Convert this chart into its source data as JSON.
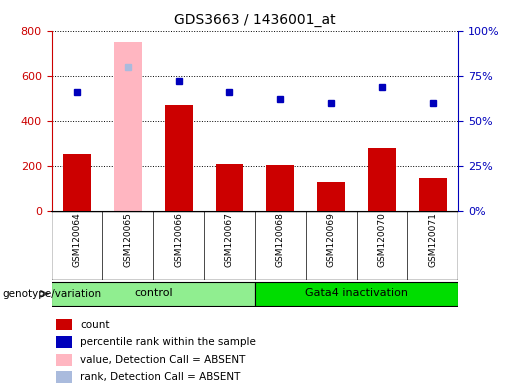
{
  "title": "GDS3663 / 1436001_at",
  "samples": [
    "GSM120064",
    "GSM120065",
    "GSM120066",
    "GSM120067",
    "GSM120068",
    "GSM120069",
    "GSM120070",
    "GSM120071"
  ],
  "counts": [
    255,
    null,
    470,
    210,
    205,
    130,
    280,
    145
  ],
  "percentile_ranks": [
    66,
    80,
    72,
    66,
    62,
    60,
    69,
    60
  ],
  "absent_value_idx": 1,
  "absent_value": 750,
  "absent_rank": 80,
  "groups": [
    {
      "label": "control",
      "start": 0,
      "end": 3,
      "color": "#90EE90"
    },
    {
      "label": "Gata4 inactivation",
      "start": 4,
      "end": 7,
      "color": "#00DD00"
    }
  ],
  "ylim_left": [
    0,
    800
  ],
  "ylim_right": [
    0,
    100
  ],
  "yticks_left": [
    0,
    200,
    400,
    600,
    800
  ],
  "ytick_labels_left": [
    "0",
    "200",
    "400",
    "600",
    "800"
  ],
  "yticks_right": [
    0,
    25,
    50,
    75,
    100
  ],
  "ytick_labels_right": [
    "0%",
    "25%",
    "50%",
    "75%",
    "100%"
  ],
  "bar_color": "#CC0000",
  "dot_color": "#0000BB",
  "absent_bar_color": "#FFB6C1",
  "absent_dot_color": "#AABBDD",
  "left_tick_color": "#CC0000",
  "right_tick_color": "#0000BB",
  "legend_items": [
    {
      "label": "count",
      "color": "#CC0000"
    },
    {
      "label": "percentile rank within the sample",
      "color": "#0000BB"
    },
    {
      "label": "value, Detection Call = ABSENT",
      "color": "#FFB6C1"
    },
    {
      "label": "rank, Detection Call = ABSENT",
      "color": "#AABBDD"
    }
  ],
  "genotype_label": "genotype/variation",
  "fig_width": 5.15,
  "fig_height": 3.84
}
